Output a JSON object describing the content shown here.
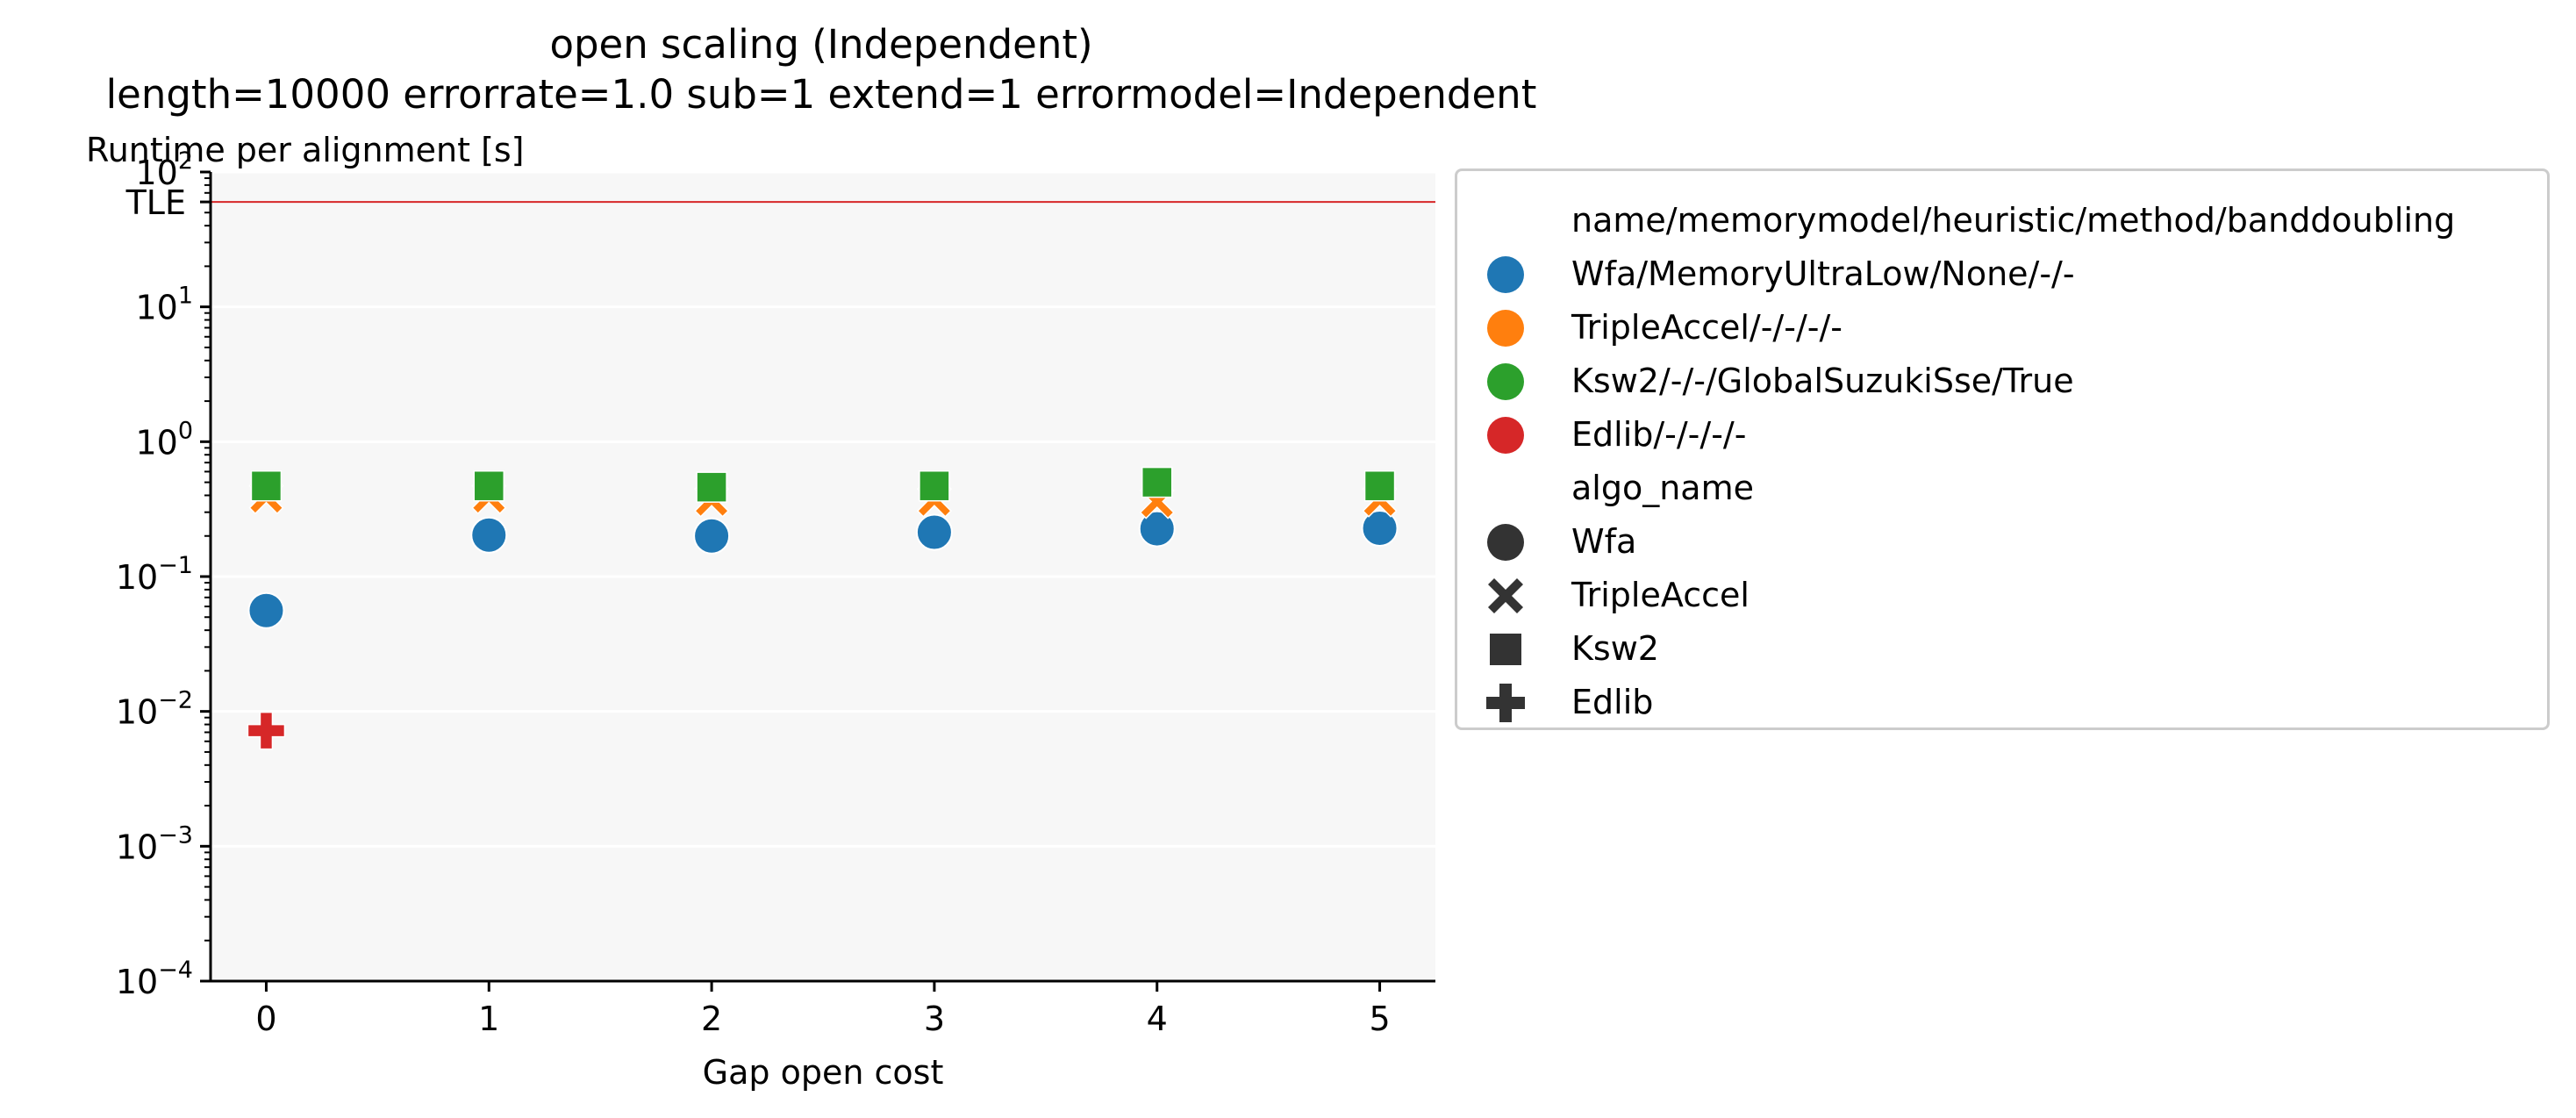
{
  "title_line1": "open scaling (Independent)",
  "title_line2": "length=10000 errorrate=1.0 sub=1 extend=1 errormodel=Independent",
  "chart_data": {
    "type": "scatter",
    "title": "open scaling (Independent)",
    "subtitle": "length=10000 errorrate=1.0 sub=1 extend=1 errormodel=Independent",
    "xlabel": "Gap open cost",
    "ylabel": "Runtime per alignment [s]",
    "x_ticks": [
      0,
      1,
      2,
      3,
      4,
      5
    ],
    "xlim": [
      -0.25,
      5.25
    ],
    "yscale": "log",
    "ylim": [
      0.0001,
      100
    ],
    "y_ticks": [
      {
        "value": 0.0001,
        "base": "10",
        "exp": "−4"
      },
      {
        "value": 0.001,
        "base": "10",
        "exp": "−3"
      },
      {
        "value": 0.01,
        "base": "10",
        "exp": "−2"
      },
      {
        "value": 0.1,
        "base": "10",
        "exp": "−1"
      },
      {
        "value": 1,
        "base": "10",
        "exp": "0"
      },
      {
        "value": 10,
        "base": "10",
        "exp": "1"
      },
      {
        "value": 100,
        "base": "10",
        "exp": "2"
      }
    ],
    "tle": {
      "label": "TLE",
      "value": 60,
      "color": "#d62728"
    },
    "grid": true,
    "background": "#f7f7f7",
    "legend_placement": "outside-right",
    "series": [
      {
        "name": "Wfa/MemoryUltraLow/None/-/-",
        "algo": "Wfa",
        "marker": "circle",
        "color": "#1f77b4",
        "x": [
          0,
          1,
          2,
          3,
          4,
          5
        ],
        "y": [
          0.056,
          0.203,
          0.2,
          0.213,
          0.226,
          0.228
        ]
      },
      {
        "name": "TripleAccel/-/-/-/-",
        "algo": "TripleAccel",
        "marker": "x",
        "color": "#ff7f0e",
        "x": [
          0,
          1,
          2,
          3,
          4,
          5
        ],
        "y": [
          0.39,
          0.39,
          0.37,
          0.37,
          0.36,
          0.37
        ]
      },
      {
        "name": "Ksw2/-/-/GlobalSuzukiSse/True",
        "algo": "Ksw2",
        "marker": "square",
        "color": "#2ca02c",
        "x": [
          0,
          1,
          2,
          3,
          4,
          5
        ],
        "y": [
          0.47,
          0.47,
          0.46,
          0.47,
          0.5,
          0.47
        ]
      },
      {
        "name": "Edlib/-/-/-/-",
        "algo": "Edlib",
        "marker": "plus",
        "color": "#d62728",
        "x": [
          0
        ],
        "y": [
          0.0072
        ]
      }
    ]
  },
  "legend": {
    "hue_title": "name/memorymodel/heuristic/method/banddoubling",
    "hue_items": [
      {
        "label": "Wfa/MemoryUltraLow/None/-/-",
        "color": "#1f77b4"
      },
      {
        "label": "TripleAccel/-/-/-/-",
        "color": "#ff7f0e"
      },
      {
        "label": "Ksw2/-/-/GlobalSuzukiSse/True",
        "color": "#2ca02c"
      },
      {
        "label": "Edlib/-/-/-/-",
        "color": "#d62728"
      }
    ],
    "style_title": "algo_name",
    "style_items": [
      {
        "label": "Wfa",
        "marker": "circle"
      },
      {
        "label": "TripleAccel",
        "marker": "x"
      },
      {
        "label": "Ksw2",
        "marker": "square"
      },
      {
        "label": "Edlib",
        "marker": "plus"
      }
    ],
    "style_color": "#333333"
  }
}
